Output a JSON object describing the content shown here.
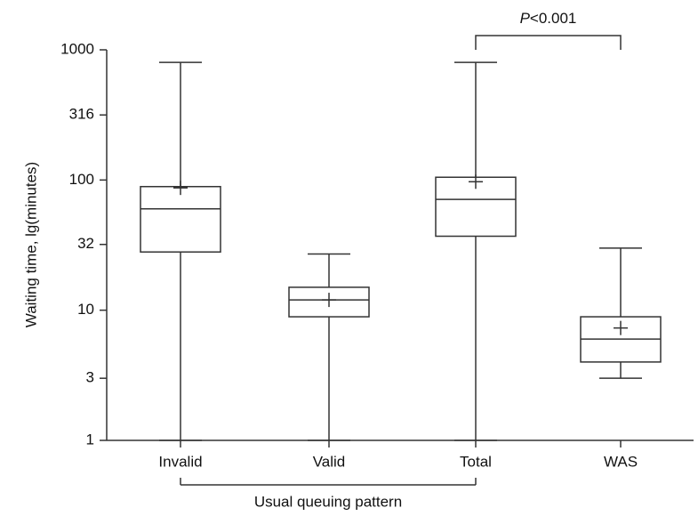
{
  "chart_data": {
    "type": "box",
    "y_label": "Waiting time, lg(minutes)",
    "yscale": "log",
    "ylim": [
      1,
      1000
    ],
    "yticks": [
      1,
      3,
      10,
      32,
      100,
      316,
      1000
    ],
    "categories": [
      "Invalid",
      "Valid",
      "Total",
      "WAS"
    ],
    "color": "#333333",
    "boxes": {
      "whisker_low": [
        1,
        1,
        1,
        3
      ],
      "q1": [
        28,
        8.9,
        37,
        4
      ],
      "median": [
        60,
        12,
        71,
        6
      ],
      "q3": [
        89,
        15,
        105,
        8.9
      ],
      "whisker_high": [
        800,
        27,
        800,
        30
      ],
      "mean": [
        87,
        12,
        97,
        7.3
      ]
    },
    "group_label": "Usual queuing pattern",
    "annotation": {
      "symbol": "P",
      "text": "<0.001"
    }
  }
}
